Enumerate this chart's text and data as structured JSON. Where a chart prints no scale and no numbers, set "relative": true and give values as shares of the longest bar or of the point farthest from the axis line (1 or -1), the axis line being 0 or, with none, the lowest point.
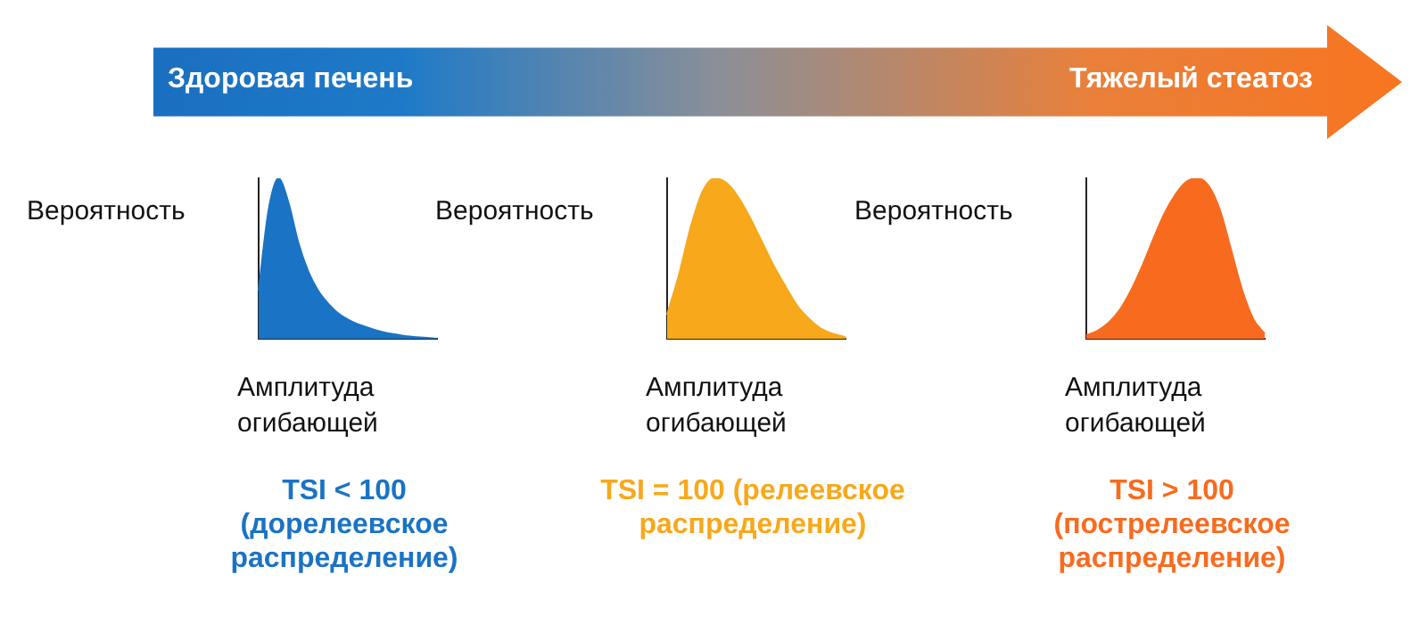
{
  "chart_data": [
    {
      "type": "other",
      "annotations": [
        "Здоровая печень",
        "Тяжелый стеатоз"
      ]
    },
    {
      "type": "area",
      "relative": true,
      "ylabel": "Вероятность",
      "xlabel": "Амплитуда огибающей",
      "annotations": [
        "TSI < 100 (дорелеевское распределение)"
      ],
      "color": "#1a73c4",
      "categories": [
        null,
        null,
        null,
        null,
        null,
        null,
        null,
        null,
        null,
        null,
        null,
        null,
        null,
        null,
        null,
        null,
        null,
        null,
        null
      ],
      "values": [
        0.3,
        0.8,
        1,
        0.85,
        0.6,
        0.42,
        0.3,
        0.22,
        0.16,
        0.12,
        0.09,
        0.07,
        0.05,
        0.035,
        0.025,
        0.015,
        0.01,
        0.005,
        0
      ]
    },
    {
      "type": "area",
      "relative": true,
      "ylabel": "Вероятность",
      "xlabel": "Амплитуда огибающей",
      "annotations": [
        "TSI = 100 (релеевское распределение)"
      ],
      "color": "#f7a81b",
      "categories": [
        null,
        null,
        null,
        null,
        null,
        null,
        null,
        null,
        null,
        null,
        null,
        null,
        null,
        null,
        null,
        null
      ],
      "values": [
        0.15,
        0.4,
        0.7,
        0.92,
        1,
        0.97,
        0.88,
        0.75,
        0.6,
        0.45,
        0.32,
        0.2,
        0.12,
        0.06,
        0.03,
        0.01
      ]
    },
    {
      "type": "area",
      "relative": true,
      "ylabel": "Вероятность",
      "xlabel": "Амплитуда огибающей",
      "annotations": [
        "TSI > 100 (пострелеевское распределение)"
      ],
      "color": "#f86b1f",
      "categories": [
        null,
        null,
        null,
        null,
        null,
        null,
        null,
        null,
        null,
        null,
        null,
        null,
        null,
        null,
        null,
        null,
        null
      ],
      "values": [
        0.02,
        0.05,
        0.1,
        0.18,
        0.3,
        0.45,
        0.62,
        0.78,
        0.9,
        0.98,
        1,
        0.95,
        0.8,
        0.55,
        0.3,
        0.12,
        0.03
      ]
    }
  ]
}
